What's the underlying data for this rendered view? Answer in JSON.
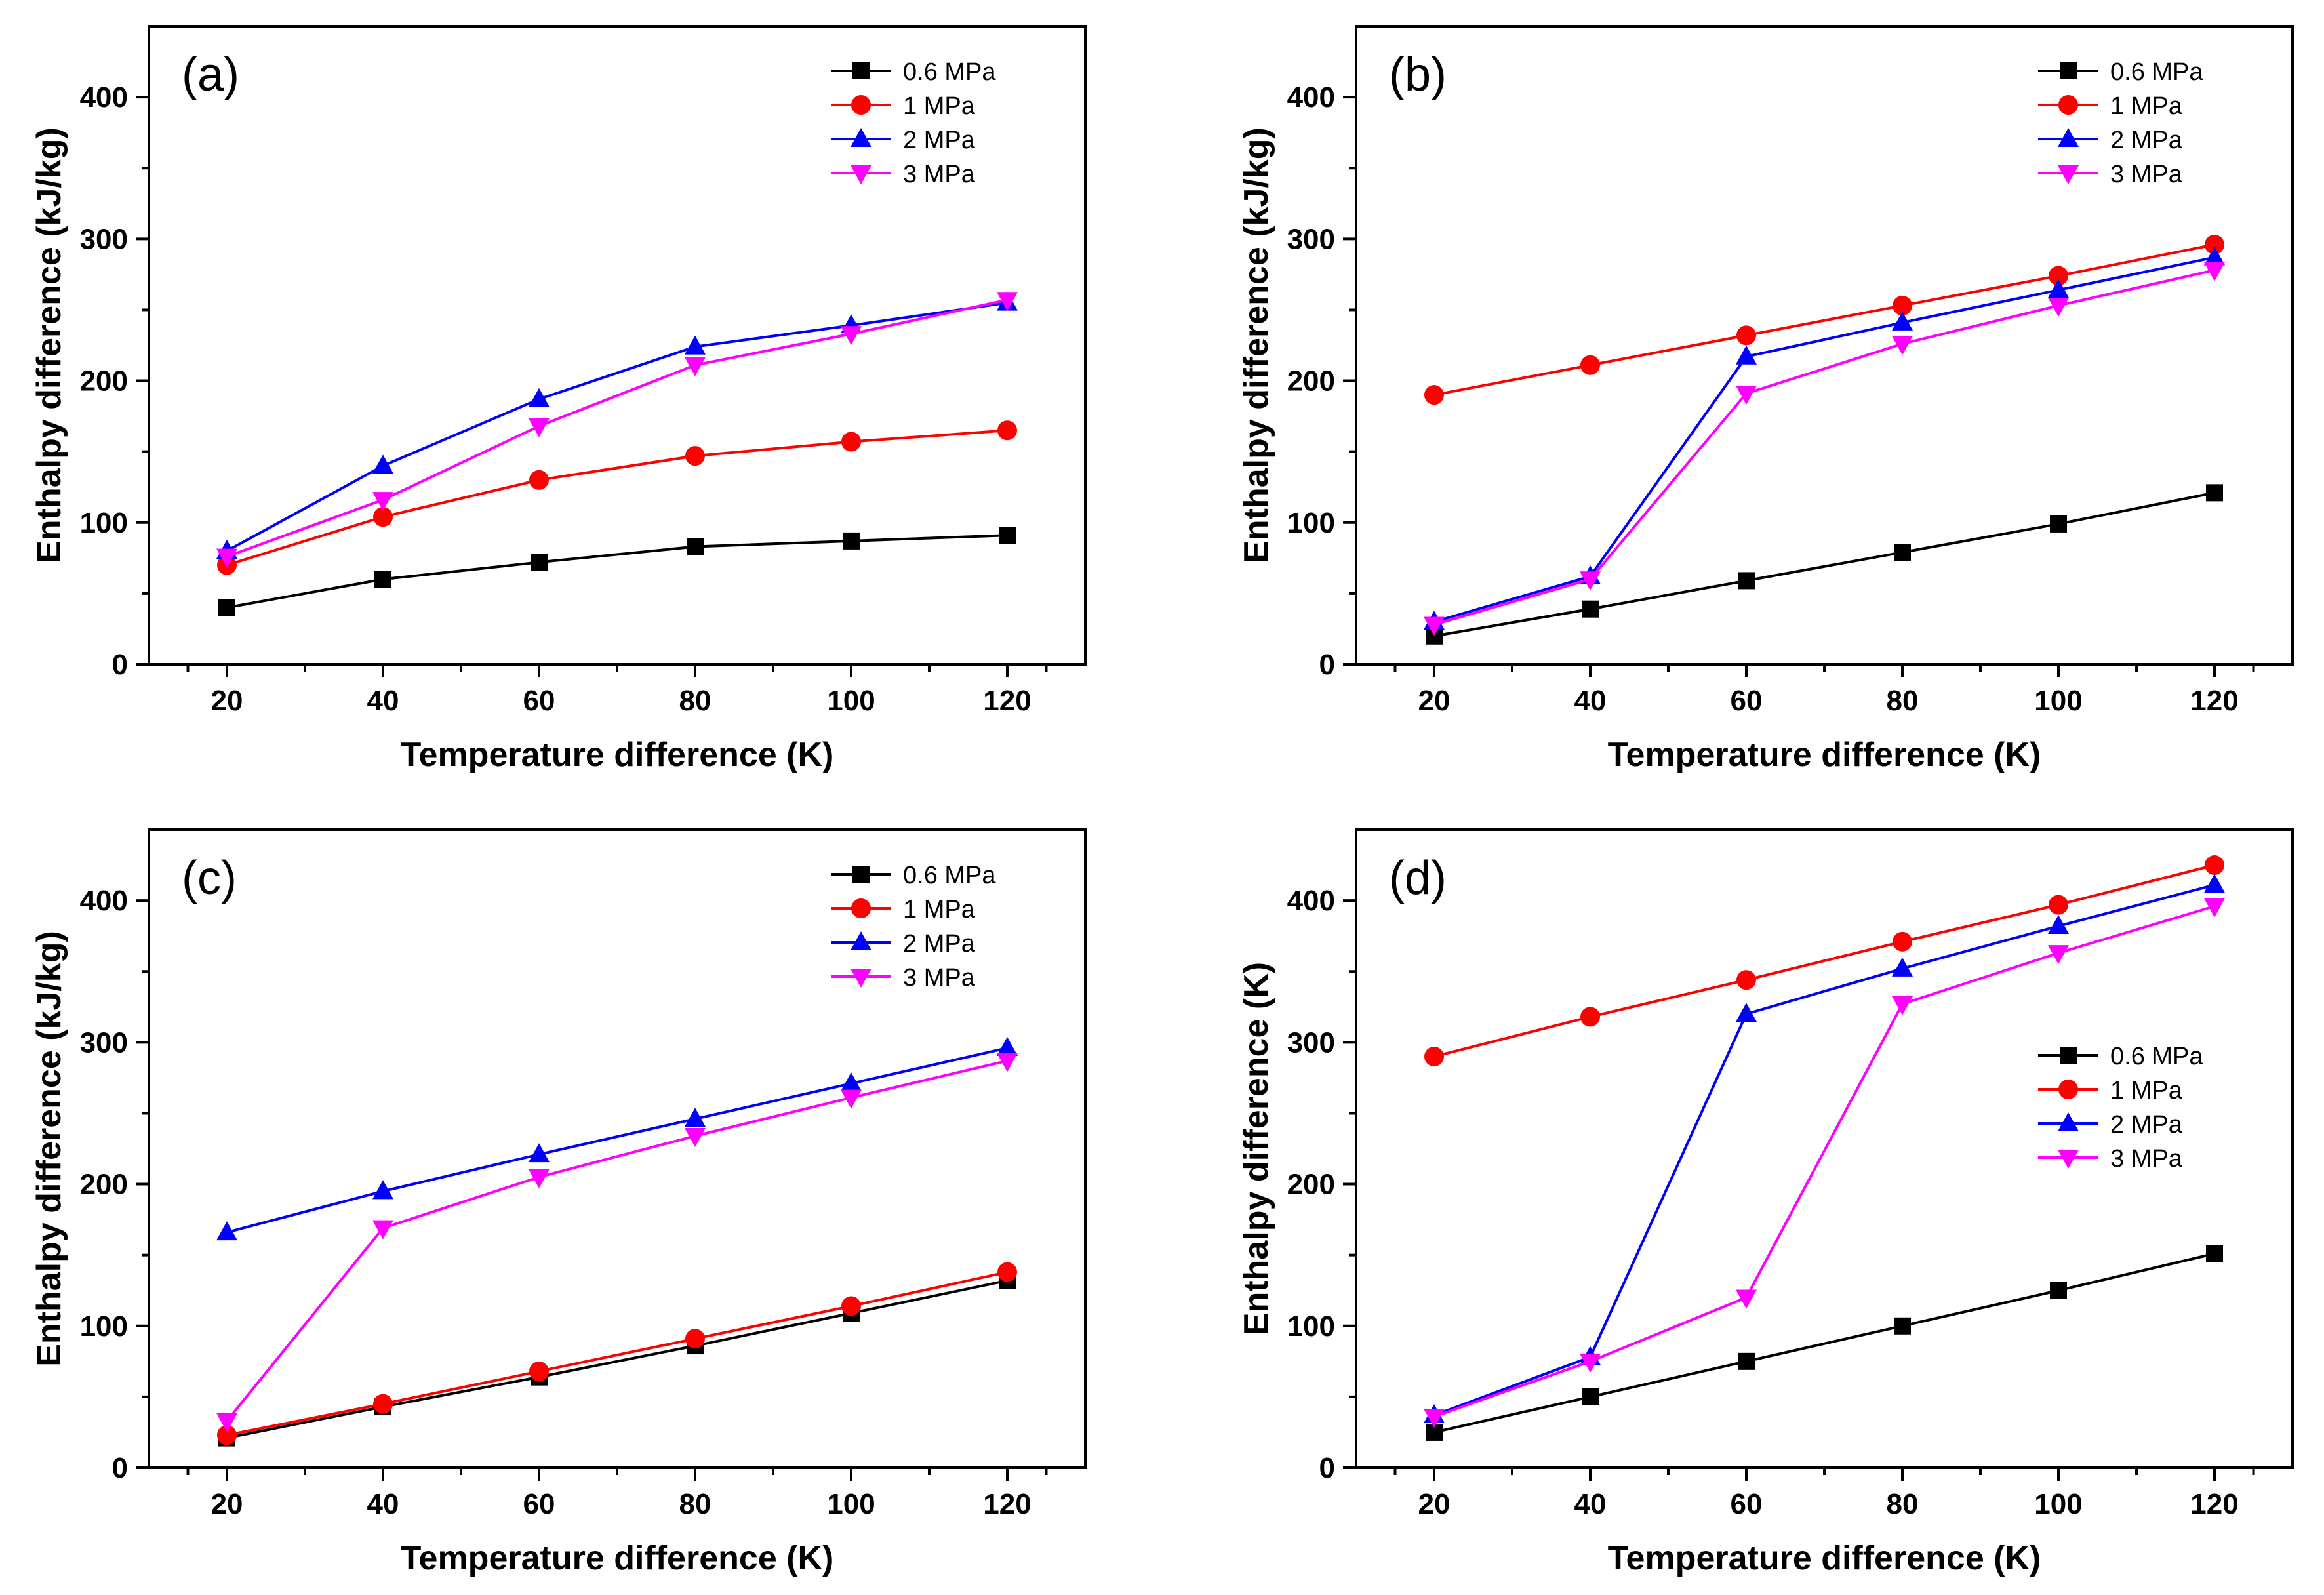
{
  "chart_data": [
    {
      "type": "line",
      "panel_label": "(a)",
      "xlabel": "Temperature difference (K)",
      "ylabel": "Enthalpy difference (kJ/kg)",
      "xlim": [
        10,
        130
      ],
      "ylim": [
        0,
        450
      ],
      "xticks": [
        20,
        40,
        60,
        80,
        100,
        120
      ],
      "yticks": [
        0,
        100,
        200,
        300,
        400
      ],
      "legend_position": "top-right",
      "x": [
        20,
        40,
        60,
        80,
        100,
        120
      ],
      "series": [
        {
          "name": "0.6 MPa",
          "color": "#000000",
          "marker": "square",
          "values": [
            40,
            60,
            72,
            83,
            87,
            91
          ]
        },
        {
          "name": "1 MPa",
          "color": "#ff0000",
          "marker": "circle",
          "values": [
            70,
            104,
            130,
            147,
            157,
            165
          ]
        },
        {
          "name": "2 MPa",
          "color": "#0000ff",
          "marker": "triangle-up",
          "values": [
            80,
            140,
            187,
            224,
            239,
            255
          ]
        },
        {
          "name": "3 MPa",
          "color": "#ff00ff",
          "marker": "triangle-down",
          "values": [
            76,
            116,
            168,
            211,
            233,
            257
          ]
        }
      ]
    },
    {
      "type": "line",
      "panel_label": "(b)",
      "xlabel": "Temperature difference (K)",
      "ylabel": "Enthalpy difference (kJ/kg)",
      "xlim": [
        10,
        130
      ],
      "ylim": [
        0,
        450
      ],
      "xticks": [
        20,
        40,
        60,
        80,
        100,
        120
      ],
      "yticks": [
        0,
        100,
        200,
        300,
        400
      ],
      "legend_position": "top-right",
      "x": [
        20,
        40,
        60,
        80,
        100,
        120
      ],
      "series": [
        {
          "name": "0.6 MPa",
          "color": "#000000",
          "marker": "square",
          "values": [
            20,
            39,
            59,
            79,
            99,
            121
          ]
        },
        {
          "name": "1 MPa",
          "color": "#ff0000",
          "marker": "circle",
          "values": [
            190,
            211,
            232,
            253,
            274,
            296
          ]
        },
        {
          "name": "2 MPa",
          "color": "#0000ff",
          "marker": "triangle-up",
          "values": [
            30,
            62,
            217,
            241,
            264,
            287
          ]
        },
        {
          "name": "3 MPa",
          "color": "#ff00ff",
          "marker": "triangle-down",
          "values": [
            28,
            60,
            191,
            226,
            253,
            278
          ]
        }
      ]
    },
    {
      "type": "line",
      "panel_label": "(c)",
      "xlabel": "Temperature difference (K)",
      "ylabel": "Enthalpy difference (kJ/kg)",
      "xlim": [
        10,
        130
      ],
      "ylim": [
        0,
        450
      ],
      "xticks": [
        20,
        40,
        60,
        80,
        100,
        120
      ],
      "yticks": [
        0,
        100,
        200,
        300,
        400
      ],
      "legend_position": "top-right",
      "x": [
        20,
        40,
        60,
        80,
        100,
        120
      ],
      "series": [
        {
          "name": "0.6 MPa",
          "color": "#000000",
          "marker": "square",
          "values": [
            21,
            43,
            64,
            86,
            109,
            132
          ]
        },
        {
          "name": "1 MPa",
          "color": "#ff0000",
          "marker": "circle",
          "values": [
            23,
            45,
            68,
            91,
            114,
            138
          ]
        },
        {
          "name": "2 MPa",
          "color": "#0000ff",
          "marker": "triangle-up",
          "values": [
            166,
            195,
            221,
            246,
            271,
            296
          ]
        },
        {
          "name": "3 MPa",
          "color": "#ff00ff",
          "marker": "triangle-down",
          "values": [
            33,
            169,
            205,
            234,
            261,
            287
          ]
        }
      ]
    },
    {
      "type": "line",
      "panel_label": "(d)",
      "xlabel": "Temperature difference (K)",
      "ylabel": "Enthalpy difference (K)",
      "xlim": [
        10,
        130
      ],
      "ylim": [
        0,
        450
      ],
      "xticks": [
        20,
        40,
        60,
        80,
        100,
        120
      ],
      "yticks": [
        0,
        100,
        200,
        300,
        400
      ],
      "legend_position": "center-right",
      "x": [
        20,
        40,
        60,
        80,
        100,
        120
      ],
      "series": [
        {
          "name": "0.6 MPa",
          "color": "#000000",
          "marker": "square",
          "values": [
            25,
            50,
            75,
            100,
            125,
            151
          ]
        },
        {
          "name": "1 MPa",
          "color": "#ff0000",
          "marker": "circle",
          "values": [
            290,
            318,
            344,
            371,
            397,
            425
          ]
        },
        {
          "name": "2 MPa",
          "color": "#0000ff",
          "marker": "triangle-up",
          "values": [
            37,
            78,
            320,
            352,
            382,
            411
          ]
        },
        {
          "name": "3 MPa",
          "color": "#ff00ff",
          "marker": "triangle-down",
          "values": [
            36,
            75,
            120,
            327,
            363,
            396
          ]
        }
      ]
    }
  ]
}
